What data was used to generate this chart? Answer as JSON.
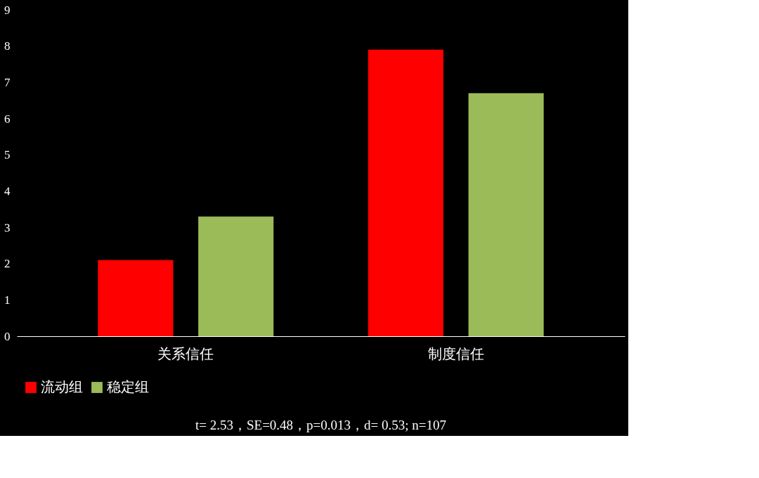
{
  "chart_data": {
    "type": "bar",
    "categories": [
      "关系信任",
      "制度信任"
    ],
    "series": [
      {
        "name": "流动组",
        "color": "#ff0000",
        "values": [
          2.1,
          7.9
        ]
      },
      {
        "name": "稳定组",
        "color": "#9bbb59",
        "values": [
          3.3,
          6.7
        ]
      }
    ],
    "ylim": [
      0,
      9
    ],
    "yticks": [
      0,
      1,
      2,
      3,
      4,
      5,
      6,
      7,
      8,
      9
    ],
    "grid": false,
    "legend": "bottom",
    "annotations": [
      "t= 2.53，SE=0.48，p=0.013，d= 0.53; n=107"
    ]
  }
}
